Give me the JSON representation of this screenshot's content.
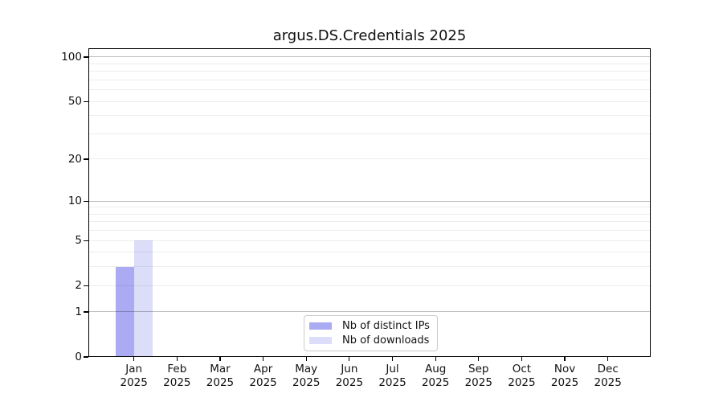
{
  "chart_data": {
    "type": "bar",
    "title": "argus.DS.Credentials 2025",
    "categories": [
      "Jan 2025",
      "Feb 2025",
      "Mar 2025",
      "Apr 2025",
      "May 2025",
      "Jun 2025",
      "Jul 2025",
      "Aug 2025",
      "Sep 2025",
      "Oct 2025",
      "Nov 2025",
      "Dec 2025"
    ],
    "x_months": [
      "Jan",
      "Feb",
      "Mar",
      "Apr",
      "May",
      "Jun",
      "Jul",
      "Aug",
      "Sep",
      "Oct",
      "Nov",
      "Dec"
    ],
    "x_year": "2025",
    "series": [
      {
        "name": "Nb of distinct IPs",
        "color": "#aaabf2",
        "values": [
          3,
          0,
          0,
          0,
          0,
          0,
          0,
          0,
          0,
          0,
          0,
          0
        ]
      },
      {
        "name": "Nb of downloads",
        "color": "#dcddf8",
        "values": [
          5,
          0,
          0,
          0,
          0,
          0,
          0,
          0,
          0,
          0,
          0,
          0
        ]
      }
    ],
    "y_axis": {
      "scale": "log10(1+x)",
      "ticks": [
        0,
        1,
        2,
        5,
        10,
        20,
        50,
        100
      ],
      "top_value": 115
    },
    "grid": {
      "orientation": "horizontal",
      "major_lines": [
        1,
        10,
        100
      ],
      "minor_lines": [
        2,
        3,
        4,
        5,
        6,
        7,
        8,
        9,
        20,
        30,
        40,
        50,
        60,
        70,
        80,
        90
      ]
    },
    "legend_position": "bottom-center"
  }
}
